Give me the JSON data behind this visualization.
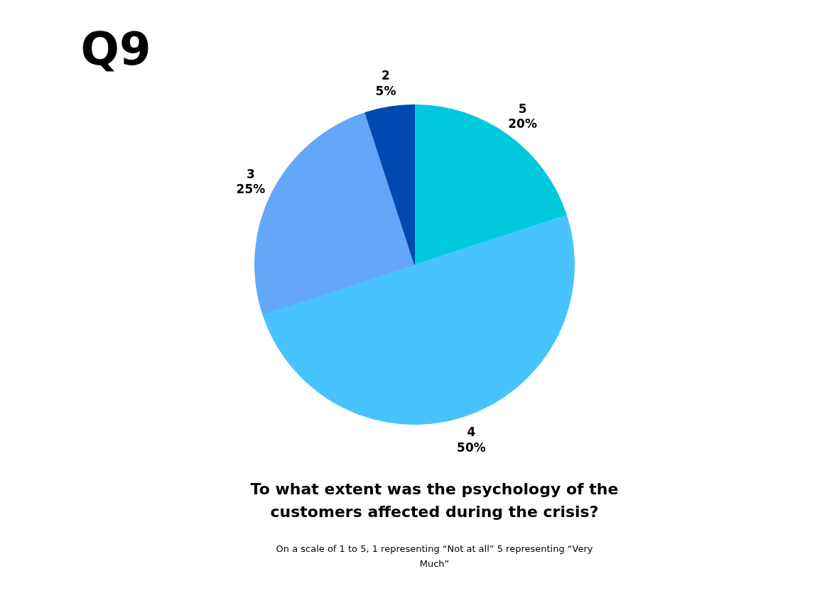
{
  "chart_data": {
    "type": "pie",
    "title": "Q9",
    "subtitle": "To what extent was the psychology of the customers affected during the crisis?",
    "annotations": [
      "On a scale of 1 to 5, 1 representing “Not at all” 5 representing “Very Much”"
    ],
    "categories": [
      "5",
      "4",
      "3",
      "2"
    ],
    "values": [
      20,
      50,
      25,
      5
    ],
    "value_labels": [
      "20%",
      "50%",
      "25%",
      "5%"
    ],
    "colors": [
      "#00c9de",
      "#48c3fd",
      "#64a6f8",
      "#0049b0"
    ]
  }
}
